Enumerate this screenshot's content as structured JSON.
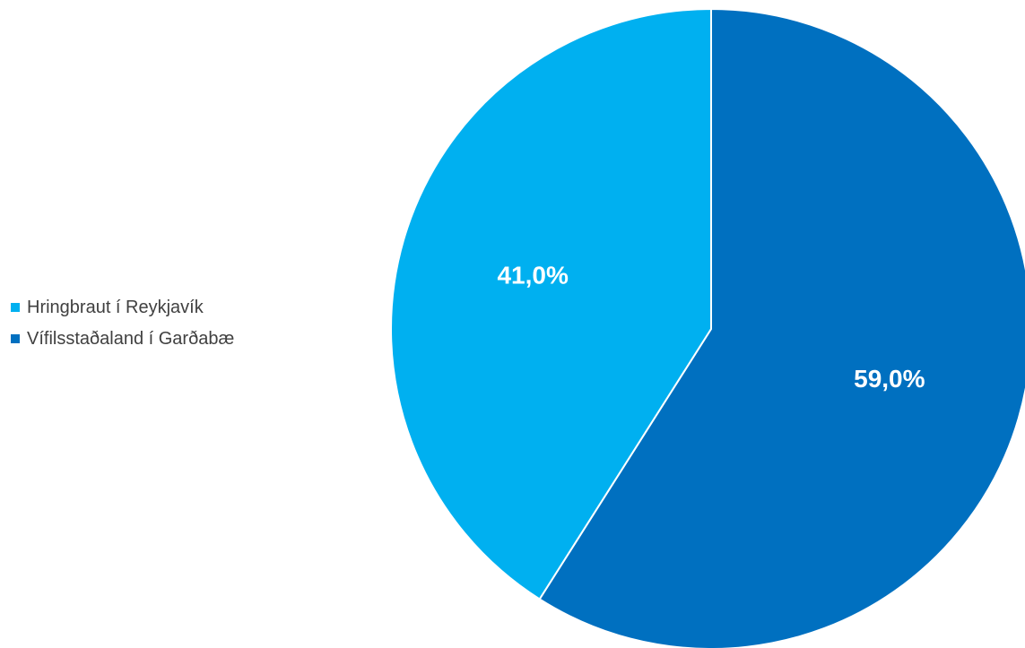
{
  "chart_data": {
    "type": "pie",
    "slices": [
      {
        "label": "Hringbraut í Reykjavík",
        "value": 41.0,
        "value_label": "41,0%",
        "color": "#00b0f0"
      },
      {
        "label": "Vífilsstaðaland í Garðabæ",
        "value": 59.0,
        "value_label": "59,0%",
        "color": "#0070c0"
      }
    ],
    "start_angle": "12 o'clock",
    "direction": "counterclockwise from 12 o'clock for first slice",
    "legend_position": "left",
    "slice_border_color": "#ffffff"
  }
}
